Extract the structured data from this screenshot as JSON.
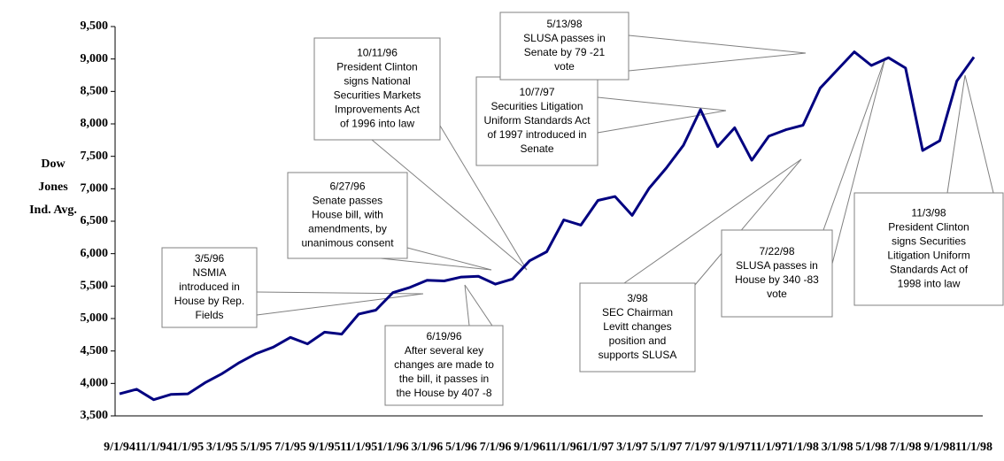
{
  "chart_data": {
    "type": "line",
    "y_label": [
      "Dow",
      "Jones",
      "Ind. Avg."
    ],
    "categories": [
      "9/1/94",
      null,
      "11/1/94",
      null,
      "1/1/95",
      null,
      "3/1/95",
      null,
      "5/1/95",
      null,
      "7/1/95",
      null,
      "9/1/95",
      null,
      "11/1/95",
      null,
      "1/1/96",
      null,
      "3/1/96",
      null,
      "5/1/96",
      null,
      "7/1/96",
      null,
      "9/1/96",
      null,
      "11/1/96",
      null,
      "1/1/97",
      null,
      "3/1/97",
      null,
      "5/1/97",
      null,
      "7/1/97",
      null,
      "9/1/97",
      null,
      "11/1/97",
      null,
      "1/1/98",
      null,
      "3/1/98",
      null,
      "5/1/98",
      null,
      "7/1/98",
      null,
      "9/1/98",
      null,
      "11/1/98"
    ],
    "series": [
      {
        "color": "#000080",
        "values": [
          3840,
          3910,
          3750,
          3830,
          3840,
          4010,
          4150,
          4320,
          4460,
          4560,
          4710,
          4610,
          4790,
          4760,
          5070,
          5130,
          5400,
          5480,
          5590,
          5580,
          5640,
          5650,
          5530,
          5610,
          5890,
          6030,
          6520,
          6440,
          6820,
          6880,
          6590,
          7010,
          7320,
          7670,
          8220,
          7650,
          7940,
          7440,
          7810,
          7910,
          7980,
          8550,
          8830,
          9110,
          8900,
          9020,
          8860,
          7590,
          7740,
          8660,
          9030
        ]
      }
    ],
    "ylim": [
      3500,
      9500
    ],
    "yticks": [
      {
        "value": 3500,
        "label": "3,500"
      },
      {
        "value": 4000,
        "label": "4,000"
      },
      {
        "value": 4500,
        "label": "4,500"
      },
      {
        "value": 5000,
        "label": "5,000"
      },
      {
        "value": 5500,
        "label": "5,500"
      },
      {
        "value": 6000,
        "label": "6,000"
      },
      {
        "value": 6500,
        "label": "6,500"
      },
      {
        "value": 7000,
        "label": "7,000"
      },
      {
        "value": 7500,
        "label": "7,500"
      },
      {
        "value": 8000,
        "label": "8,000"
      },
      {
        "value": 8500,
        "label": "8,500"
      },
      {
        "value": 9000,
        "label": "9,000"
      },
      {
        "value": 9500,
        "label": "9,500"
      }
    ],
    "annotations": [
      [
        "3/5/96",
        "NSMIA",
        "introduced in",
        "House by Rep.",
        "Fields"
      ],
      [
        "6/27/96",
        "Senate passes",
        "House bill, with",
        "amendments, by",
        "unanimous consent"
      ],
      [
        "10/11/96",
        "President Clinton",
        "signs National",
        "Securities Markets",
        "Improvements Act",
        "of 1996 into law"
      ],
      [
        "6/19/96",
        "After several key",
        "changes are made to",
        "the bill, it passes in",
        "the House by 407  -8"
      ],
      [
        "10/7/97",
        "Securities Litigation",
        "Uniform Standards Act",
        "of 1997 introduced in",
        "Senate"
      ],
      [
        "5/13/98",
        "SLUSA passes in",
        "Senate by 79  -21",
        "vote"
      ],
      [
        "3/98",
        "SEC Chairman",
        "Levitt changes",
        "position and",
        "supports SLUSA"
      ],
      [
        "7/22/98",
        "SLUSA passes in",
        "House by 340  -83",
        "vote"
      ],
      [
        "11/3/98",
        "President Clinton",
        "signs Securities",
        "Litigation Uniform",
        "Standards Act of",
        "1998 into law"
      ]
    ]
  }
}
